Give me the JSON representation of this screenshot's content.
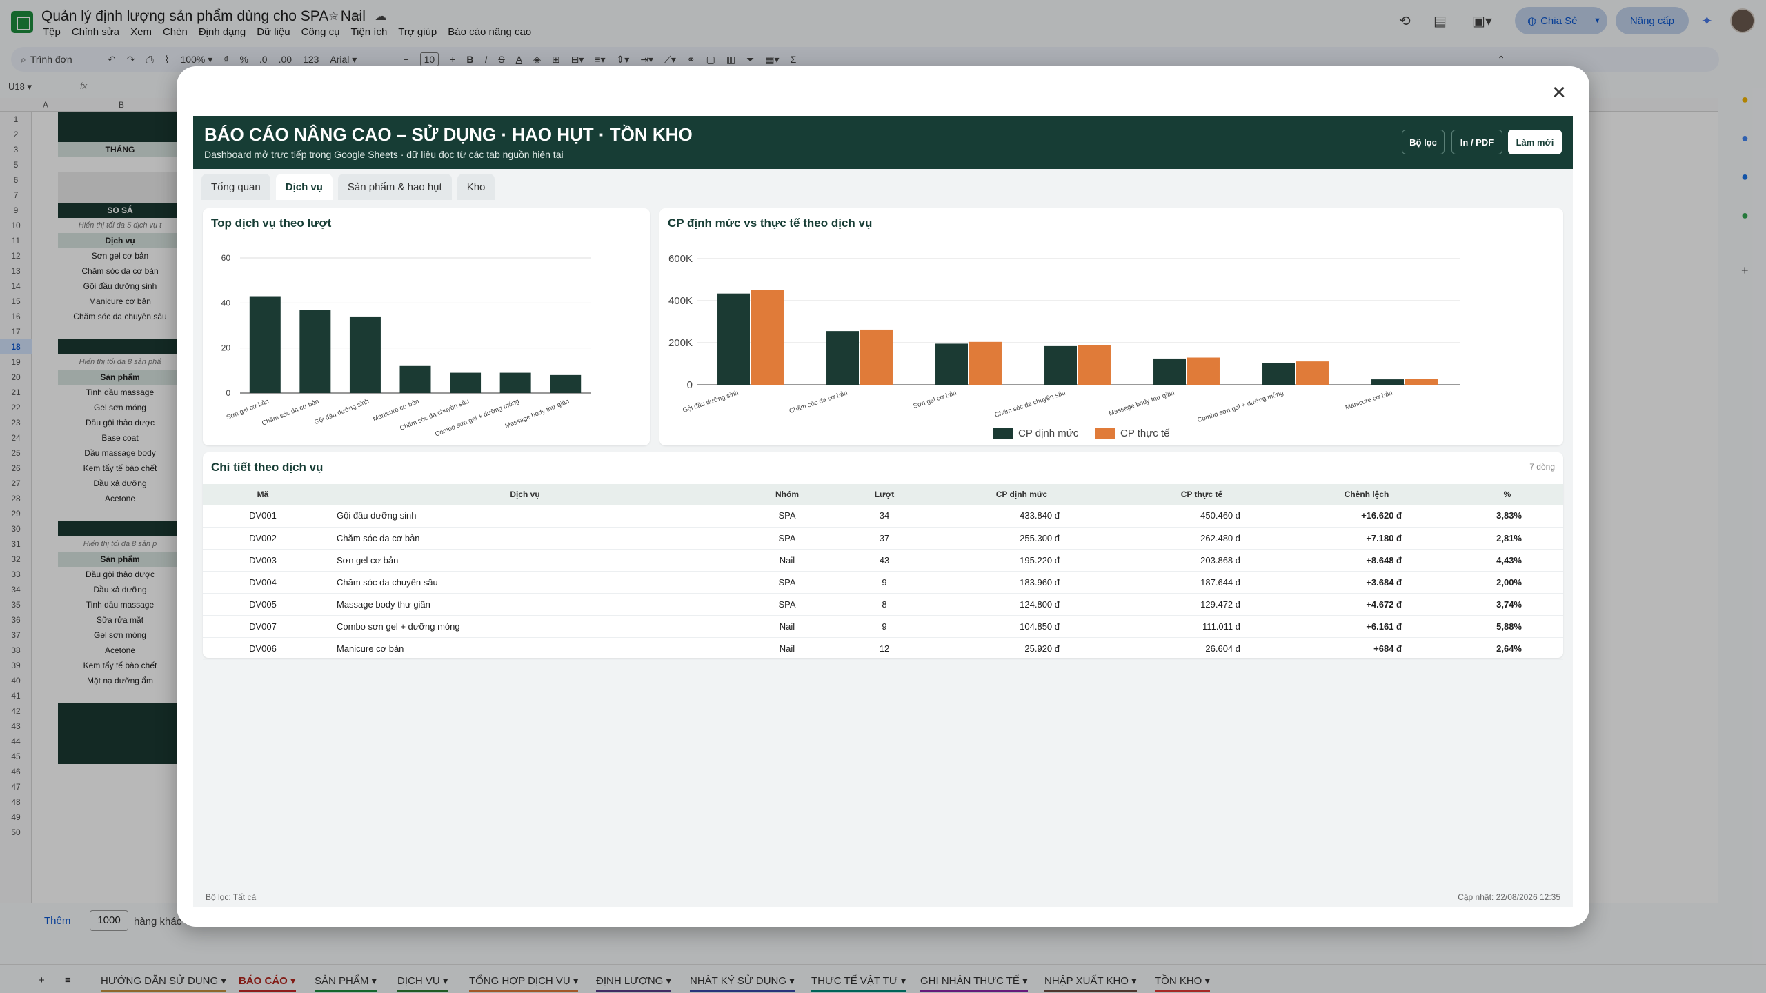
{
  "doc": {
    "title": "Quản lý định lượng sản phẩm dùng cho SPA - Nail",
    "menus": [
      "Tệp",
      "Chỉnh sửa",
      "Xem",
      "Chèn",
      "Định dạng",
      "Dữ liệu",
      "Công cụ",
      "Tiện ích",
      "Trợ giúp",
      "Báo cáo nâng cao"
    ],
    "share_label": "Chia Sẻ",
    "upgrade_label": "Nâng cấp"
  },
  "toolbar": {
    "search_placeholder": "Trình đơn",
    "zoom": "100%",
    "currency": "₫",
    "percent": "%",
    "dec_less": ".0",
    "dec_more": ".00",
    "num_format": "123",
    "font": "Arial",
    "font_size": "10"
  },
  "formula": {
    "cell_ref": "U18",
    "fx": "fx"
  },
  "grid": {
    "col_a": "A",
    "col_b": "B",
    "rows": [
      "1",
      "2",
      "3",
      "5",
      "6",
      "7",
      "9",
      "10",
      "11",
      "12",
      "13",
      "14",
      "15",
      "16",
      "17",
      "18",
      "19",
      "20",
      "21",
      "22",
      "23",
      "24",
      "25",
      "26",
      "27",
      "28",
      "29",
      "30",
      "31",
      "32",
      "33",
      "34",
      "35",
      "36",
      "37",
      "38",
      "39",
      "40",
      "41",
      "42",
      "43",
      "44",
      "45",
      "46",
      "47",
      "48",
      "49",
      "50"
    ],
    "cells": {
      "thang": "THÁNG",
      "so_sanh": "SO SÁ",
      "note5": "Hiển thị tối đa 5 dịch vụ t",
      "dich_vu": "Dịch vụ",
      "dv": [
        "Sơn gel cơ bản",
        "Chăm sóc da cơ bản",
        "Gội đầu dưỡng sinh",
        "Manicure cơ bản",
        "Chăm sóc da chuyên sâu"
      ],
      "note8a": "Hiển thị tối đa 8 sản phẩ",
      "san_pham": "Sản phẩm",
      "sp1": [
        "Tinh dầu massage",
        "Gel sơn móng",
        "Dầu gội thảo dược",
        "Base coat",
        "Dầu massage body",
        "Kem tẩy tế bào chết",
        "Dầu xả dưỡng",
        "Acetone"
      ],
      "note8b": "Hiển thị tối đa 8 sản p",
      "san_pham2": "Sản phẩm",
      "sp2": [
        "Dầu gội thảo dược",
        "Dầu xả dưỡng",
        "Tinh dầu massage",
        "Sữa rửa mặt",
        "Gel sơn móng",
        "Acetone",
        "Kem tẩy tế bào chết",
        "Mặt nạ dưỡng ẩm"
      ]
    }
  },
  "bottom": {
    "add_label": "Thêm",
    "rows_value": "1000",
    "rows_text": "hàng khác ở cuối trang"
  },
  "sheet_tabs": [
    "HƯỚNG DẪN SỬ DỤNG",
    "BÁO CÁO",
    "SẢN PHẨM",
    "DỊCH VỤ",
    "TỔNG HỢP DỊCH VỤ",
    "ĐỊNH LƯỢNG",
    "NHẬT KÝ SỬ DỤNG",
    "THỰC TẾ VẬT TƯ",
    "GHI NHẬN THỰC TẾ",
    "NHẬP XUẤT KHO",
    "TỒN KHO"
  ],
  "active_sheet": "BÁO CÁO",
  "dashboard": {
    "title": "BÁO CÁO NÂNG CAO – SỬ DỤNG · HAO HỤT · TỒN KHO",
    "subtitle": "Dashboard mở trực tiếp trong Google Sheets · dữ liệu đọc từ các tab nguồn hiện tại",
    "btn_filter": "Bộ lọc",
    "btn_print": "In / PDF",
    "btn_refresh": "Làm mới",
    "tabs": [
      "Tổng quan",
      "Dịch vụ",
      "Sản phẩm & hao hụt",
      "Kho"
    ],
    "active_tab": "Dịch vụ",
    "chart1_title": "Top dịch vụ theo lượt",
    "chart2_title": "CP định mức vs thực tế theo dịch vụ",
    "table_title": "Chi tiết theo dịch vụ",
    "table_meta": "7 dòng",
    "columns": [
      "Mã",
      "Dịch vụ",
      "Nhóm",
      "Lượt",
      "CP định mức",
      "CP thực tế",
      "Chênh lệch",
      "%"
    ],
    "rows": [
      [
        "DV001",
        "Gội đầu dưỡng sinh",
        "SPA",
        "34",
        "433.840 đ",
        "450.460 đ",
        "+16.620 đ",
        "3,83%"
      ],
      [
        "DV002",
        "Chăm sóc da cơ bản",
        "SPA",
        "37",
        "255.300 đ",
        "262.480 đ",
        "+7.180 đ",
        "2,81%"
      ],
      [
        "DV003",
        "Sơn gel cơ bản",
        "Nail",
        "43",
        "195.220 đ",
        "203.868 đ",
        "+8.648 đ",
        "4,43%"
      ],
      [
        "DV004",
        "Chăm sóc da chuyên sâu",
        "SPA",
        "9",
        "183.960 đ",
        "187.644 đ",
        "+3.684 đ",
        "2,00%"
      ],
      [
        "DV005",
        "Massage body thư giãn",
        "SPA",
        "8",
        "124.800 đ",
        "129.472 đ",
        "+4.672 đ",
        "3,74%"
      ],
      [
        "DV007",
        "Combo sơn gel + dưỡng móng",
        "Nail",
        "9",
        "104.850 đ",
        "111.011 đ",
        "+6.161 đ",
        "5,88%"
      ],
      [
        "DV006",
        "Manicure cơ bản",
        "Nail",
        "12",
        "25.920 đ",
        "26.604 đ",
        "+684 đ",
        "2,64%"
      ]
    ],
    "footer_left": "Bộ lọc: Tất cả",
    "footer_right": "Cập nhật: 22/08/2026 12:35",
    "colors": {
      "dark": "#1b3a33",
      "orange": "#e07b39",
      "neg": "#c62828"
    }
  },
  "chart_data": [
    {
      "type": "bar",
      "title": "Top dịch vụ theo lượt",
      "categories": [
        "Sơn gel cơ bản",
        "Chăm sóc da cơ bản",
        "Gội đầu dưỡng sinh",
        "Manicure cơ bản",
        "Chăm sóc da chuyên sâu",
        "Combo sơn gel + dưỡng móng",
        "Massage body thư giãn"
      ],
      "values": [
        43,
        37,
        34,
        12,
        9,
        9,
        8
      ],
      "ylim": [
        0,
        60
      ],
      "yticks": [
        "0",
        "20",
        "40",
        "60"
      ],
      "grid": true
    },
    {
      "type": "bar",
      "title": "CP định mức vs thực tế theo dịch vụ",
      "categories": [
        "Gội đầu dưỡng sinh",
        "Chăm sóc da cơ bản",
        "Sơn gel cơ bản",
        "Chăm sóc da chuyên sâu",
        "Massage body thư giãn",
        "Combo sơn gel + dưỡng móng",
        "Manicure cơ bản"
      ],
      "series": [
        {
          "name": "CP định mức",
          "values": [
            433840,
            255300,
            195220,
            183960,
            124800,
            104850,
            25920
          ]
        },
        {
          "name": "CP thực tế",
          "values": [
            450460,
            262480,
            203868,
            187644,
            129472,
            111011,
            26604
          ]
        }
      ],
      "ylim": [
        0,
        600000
      ],
      "yticks": [
        "0",
        "200K",
        "400K",
        "600K"
      ],
      "legend": "bottom",
      "grid": true
    }
  ]
}
